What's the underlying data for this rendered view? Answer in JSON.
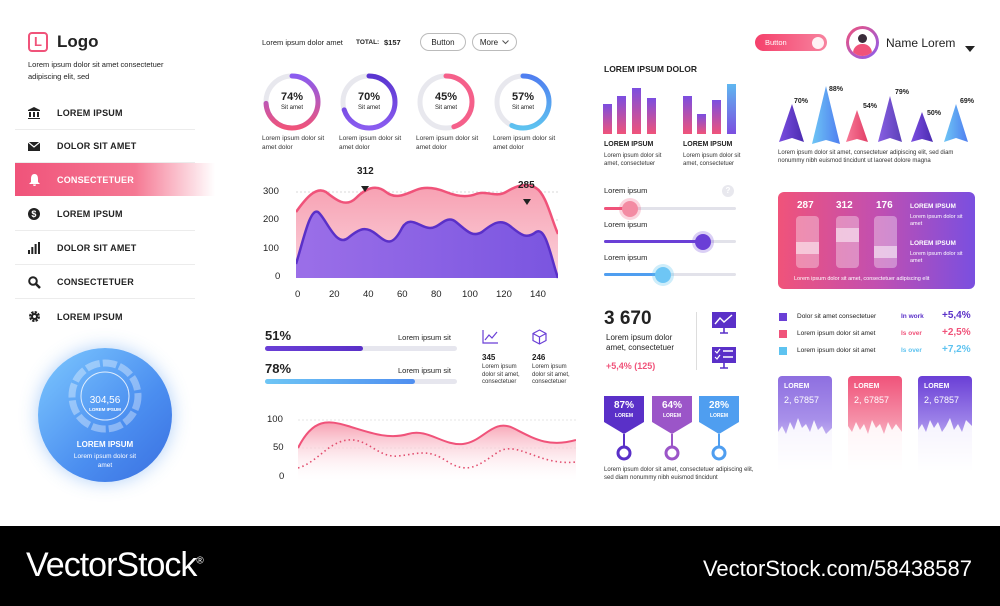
{
  "sidebar": {
    "logo_letter": "L",
    "logo_text": "Logo",
    "tagline": "Lorem ipsum dolor sit amet consectetuer adipiscing elit, sed",
    "items": [
      {
        "label": "LOREM IPSUM",
        "icon": "bank-icon"
      },
      {
        "label": "DOLOR SIT AMET",
        "icon": "mail-icon"
      },
      {
        "label": "CONSECTETUER",
        "icon": "bell-icon"
      },
      {
        "label": "LOREM IPSUM",
        "icon": "dollar-icon"
      },
      {
        "label": "DOLOR SIT AMET",
        "icon": "bar-chart-icon"
      },
      {
        "label": "CONSECTETUER",
        "icon": "search-icon"
      },
      {
        "label": "LOREM IPSUM",
        "icon": "gear-icon"
      }
    ],
    "active_index": 2,
    "gauge": {
      "value": "304,56",
      "sub": "LOREM IPSUM",
      "title": "LOREM IPSUM",
      "desc": "Lorem ipsum dolor sit amet"
    }
  },
  "topbar": {
    "text": "Lorem ipsum dolor amet",
    "total_label": "TOTAL:",
    "total_value": "$157",
    "button_label": "Button",
    "more_label": "More",
    "toggle_label": "Button",
    "user_name": "Name Lorem"
  },
  "rings": [
    {
      "pct": "74%",
      "label": "Sit amet",
      "value": 74,
      "caption": "Lorem ipsum dolor sit amet dolor"
    },
    {
      "pct": "70%",
      "label": "Sit amet",
      "value": 70,
      "caption": "Lorem ipsum dolor sit amet dolor"
    },
    {
      "pct": "45%",
      "label": "Sit amet",
      "value": 45,
      "caption": "Lorem ipsum dolor sit amet dolor"
    },
    {
      "pct": "57%",
      "label": "Sit amet",
      "value": 57,
      "caption": "Lorem ipsum dolor sit amet dolor"
    }
  ],
  "colors": {
    "pink": "#f0537a",
    "purple": "#6a3fd6",
    "violet": "#8a5cf0",
    "blue": "#4f9ef0",
    "grey": "#e8e8ee"
  },
  "area_chart": {
    "yticks": [
      "300",
      "200",
      "100",
      "0"
    ],
    "xticks": [
      "0",
      "20",
      "40",
      "60",
      "80",
      "100",
      "120",
      "140"
    ],
    "label_a": "312",
    "label_b": "285"
  },
  "progress": [
    {
      "pct": "51%",
      "label": "Lorem ipsum sit",
      "value": 0.51
    },
    {
      "pct": "78%",
      "label": "Lorem ipsum sit",
      "value": 0.78
    }
  ],
  "stats": [
    {
      "value": "345",
      "desc": "Lorem ipsum dolor sit amet, consectetuer",
      "icon": "line-chart-icon"
    },
    {
      "value": "246",
      "desc": "Lorem ipsum dolor sit amet, consectetuer",
      "icon": "cube-icon"
    }
  ],
  "wave_chart": {
    "yticks": [
      "100",
      "50",
      "0"
    ]
  },
  "bars_panel": {
    "title": "LOREM IPSUM DOLOR",
    "groups": [
      {
        "title": "LOREM IPSUM",
        "desc": "Lorem ipsum dolor sit amet, consectetuer"
      },
      {
        "title": "LOREM IPSUM",
        "desc": "Lorem ipsum dolor sit amet, consectetuer"
      }
    ]
  },
  "sliders": [
    {
      "label": "Lorem ipsum",
      "value": 0.2
    },
    {
      "label": "Lorem ipsum",
      "value": 0.75
    },
    {
      "label": "Lorem ipsum",
      "value": 0.45
    }
  ],
  "help_icon": "?",
  "kpi": {
    "value": "3 670",
    "desc": "Lorem ipsum dolor amet, consectetuer",
    "change": "+5,4% (125)"
  },
  "pins": [
    {
      "pct": "87%",
      "label": "LOREM"
    },
    {
      "pct": "64%",
      "label": "LOREM"
    },
    {
      "pct": "28%",
      "label": "LOREM"
    }
  ],
  "pins_caption": "Lorem ipsum dolor sit amet, consectetuer adipiscing elit, sed diam nonummy nibh euismod tincidunt",
  "pyramids": {
    "labels": [
      "70%",
      "88%",
      "54%",
      "79%",
      "50%",
      "69%"
    ],
    "caption": "Lorem ipsum dolor sit amet, consectetuer adipiscing elit, sed diam nonummy nibh euismod tincidunt ut laoreet dolore magna"
  },
  "gradient_card": {
    "values": [
      "287",
      "312",
      "176"
    ],
    "side_titles": [
      "LOREM IPSUM",
      "LOREM IPSUM"
    ],
    "side_desc": "Lorem ipsum dolor sit amet",
    "caption": "Lorem ipsum dolor sit amet, consectetuer adipiscing elit"
  },
  "legend": [
    {
      "text": "Dolor sit amet consectetuer",
      "status": "In work",
      "change": "+5,4%",
      "color": "#6a3fd6"
    },
    {
      "text": "Lorem ipsum dolor sit amet",
      "status": "Is over",
      "change": "+2,5%",
      "color": "#f0537a"
    },
    {
      "text": "Lorem ipsum dolor sit amet",
      "status": "Is over",
      "change": "+7,2%",
      "color": "#5ec3f0"
    }
  ],
  "wave_cards": [
    {
      "title": "LOREM",
      "value": "2, 67857"
    },
    {
      "title": "LOREM",
      "value": "2, 67857"
    },
    {
      "title": "LOREM",
      "value": "2, 67857"
    }
  ],
  "footer": {
    "brand": "VectorStock",
    "reg": "®",
    "url": "VectorStock.com/58438587"
  }
}
